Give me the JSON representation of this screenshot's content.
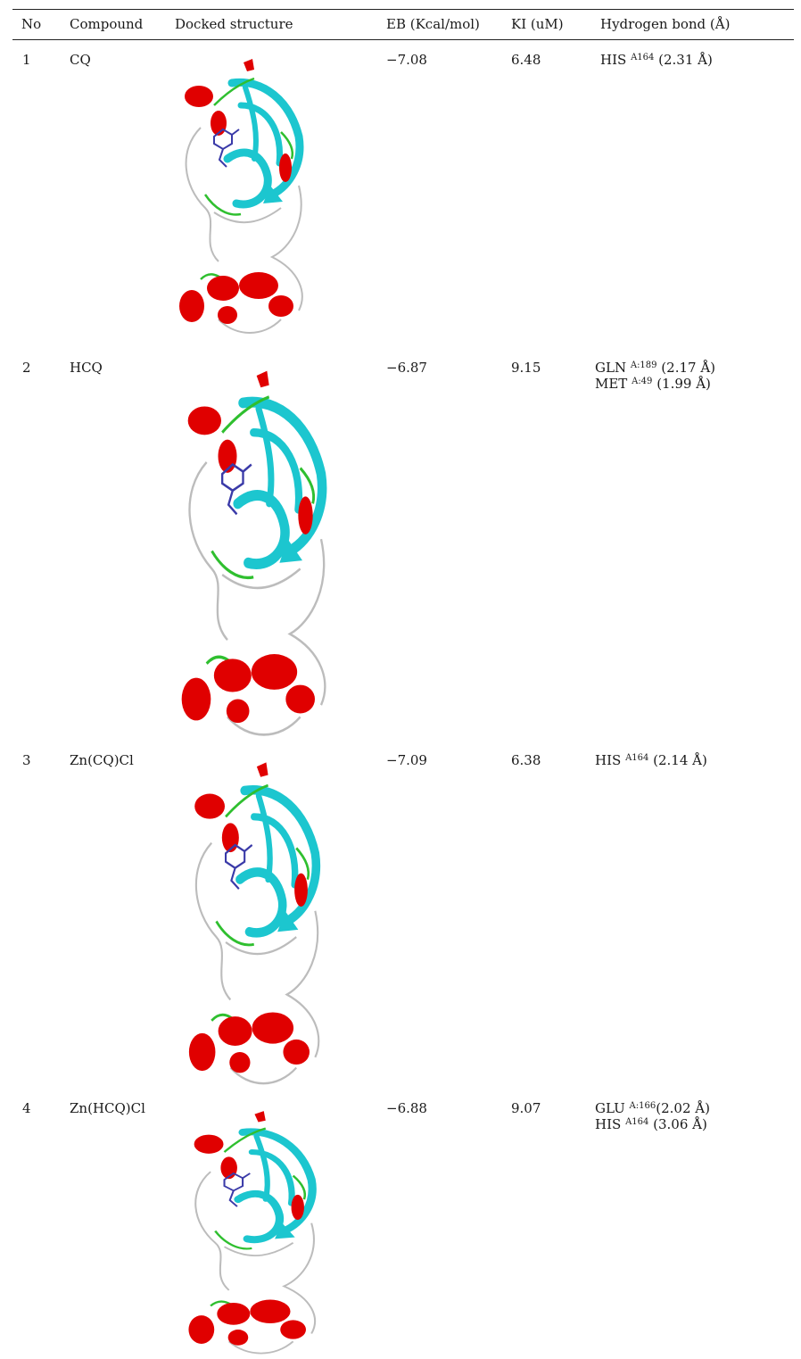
{
  "table": {
    "headers": {
      "no": "No",
      "compound": "Compound",
      "structure": "Docked structure",
      "eb": "EB (Kcal/mol)",
      "ki": "KI (uM)",
      "hbond": "Hydrogen bond (Å)"
    },
    "rows": [
      {
        "no": "1",
        "compound": "CQ",
        "eb": "−7.08",
        "ki": "6.48",
        "hbonds": [
          {
            "res": "HIS ",
            "sup": "A164",
            "val": " (2.31 Å)"
          }
        ]
      },
      {
        "no": "2",
        "compound": "HCQ",
        "eb": "−6.87",
        "ki": "9.15",
        "hbonds": [
          {
            "res": "GLN ",
            "sup": "A:189",
            "val": " (2.17 Å)"
          },
          {
            "res": "MET ",
            "sup": "A:49",
            "val": " (1.99 Å)"
          }
        ]
      },
      {
        "no": "3",
        "compound": "Zn(CQ)Cl",
        "eb": "−7.09",
        "ki": "6.38",
        "hbonds": [
          {
            "res": "HIS ",
            "sup": "A164",
            "val": " (2.14 Å)"
          }
        ]
      },
      {
        "no": "4",
        "compound": "Zn(HCQ)Cl",
        "eb": "−6.88",
        "ki": "9.07",
        "hbonds": [
          {
            "res": "GLU ",
            "sup": "A:166",
            "val": "(2.02 Å)"
          },
          {
            "res": "HIS ",
            "sup": "A164",
            "val": " (3.06 Å)"
          }
        ]
      }
    ]
  },
  "colors": {
    "helix": "#e00000",
    "sheet": "#1cc6cf",
    "turn": "#2fbf2f",
    "coil": "#bcbcbc",
    "ligand": "#3a3aa8"
  }
}
